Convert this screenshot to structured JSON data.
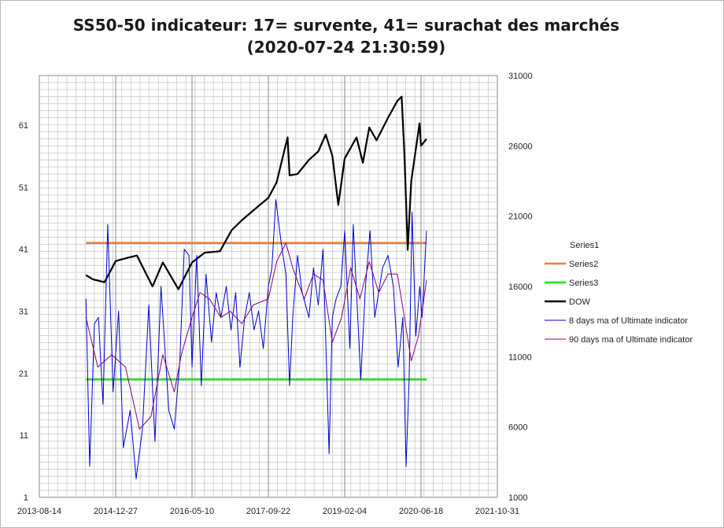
{
  "chart_data": {
    "type": "line",
    "title": "SS50-50 indicateur: 17= survente, 41= surachat des marchés (2020-07-24 21:30:59)",
    "x_axis": {
      "ticks": [
        "2013-08-14",
        "2014-12-27",
        "2016-05-10",
        "2017-09-22",
        "2019-02-04",
        "2020-06-18",
        "2021-10-31"
      ],
      "range": [
        "2013-08-14",
        "2021-10-31"
      ]
    },
    "y_axis_left": {
      "ticks": [
        "1",
        "11",
        "21",
        "31",
        "41",
        "51",
        "61"
      ],
      "range": [
        1,
        69
      ]
    },
    "y_axis_right": {
      "ticks": [
        "1000",
        "6000",
        "11000",
        "16000",
        "21000",
        "26000",
        "31000"
      ],
      "range": [
        1000,
        31000
      ]
    },
    "grid": true,
    "legend_position": "right",
    "series": [
      {
        "name": "Series1",
        "color": "#ffffff",
        "axis": "left",
        "points": []
      },
      {
        "name": "Series2",
        "color": "#ED7D31",
        "axis": "left",
        "points": [
          [
            "2014-06-15",
            42
          ],
          [
            "2020-07-24",
            42
          ]
        ]
      },
      {
        "name": "Series3",
        "color": "#22DD22",
        "axis": "left",
        "points": [
          [
            "2014-06-15",
            20
          ],
          [
            "2020-07-24",
            20
          ]
        ]
      },
      {
        "name": "DOW",
        "color": "#000000",
        "axis": "right",
        "points": [
          [
            "2014-06-15",
            16800
          ],
          [
            "2014-08-01",
            16500
          ],
          [
            "2014-10-15",
            16300
          ],
          [
            "2014-12-27",
            17800
          ],
          [
            "2015-03-01",
            18000
          ],
          [
            "2015-05-15",
            18200
          ],
          [
            "2015-08-25",
            16000
          ],
          [
            "2015-11-01",
            17700
          ],
          [
            "2016-02-11",
            15800
          ],
          [
            "2016-05-10",
            17700
          ],
          [
            "2016-08-01",
            18400
          ],
          [
            "2016-11-09",
            18500
          ],
          [
            "2017-01-25",
            20000
          ],
          [
            "2017-04-01",
            20700
          ],
          [
            "2017-06-15",
            21400
          ],
          [
            "2017-09-22",
            22300
          ],
          [
            "2017-11-15",
            23400
          ],
          [
            "2018-01-26",
            26600
          ],
          [
            "2018-02-08",
            23900
          ],
          [
            "2018-04-01",
            24000
          ],
          [
            "2018-06-15",
            25000
          ],
          [
            "2018-08-15",
            25600
          ],
          [
            "2018-10-03",
            26800
          ],
          [
            "2018-11-15",
            25300
          ],
          [
            "2018-12-24",
            21800
          ],
          [
            "2019-02-04",
            25100
          ],
          [
            "2019-04-23",
            26600
          ],
          [
            "2019-06-03",
            24800
          ],
          [
            "2019-07-15",
            27300
          ],
          [
            "2019-09-01",
            26400
          ],
          [
            "2019-11-15",
            28000
          ],
          [
            "2020-01-15",
            29200
          ],
          [
            "2020-02-12",
            29500
          ],
          [
            "2020-03-01",
            25400
          ],
          [
            "2020-03-23",
            18600
          ],
          [
            "2020-04-15",
            23500
          ],
          [
            "2020-06-08",
            27600
          ],
          [
            "2020-06-18",
            26000
          ],
          [
            "2020-07-24",
            26500
          ]
        ]
      },
      {
        "name": "8 days ma of Ultimate indicator",
        "color": "#0000CC",
        "axis": "left",
        "points": [
          [
            "2014-06-15",
            33
          ],
          [
            "2014-07-10",
            6
          ],
          [
            "2014-08-10",
            29
          ],
          [
            "2014-09-05",
            30
          ],
          [
            "2014-10-05",
            16
          ],
          [
            "2014-11-05",
            45
          ],
          [
            "2014-12-10",
            18
          ],
          [
            "2015-01-15",
            31
          ],
          [
            "2015-02-15",
            9
          ],
          [
            "2015-04-01",
            15
          ],
          [
            "2015-05-10",
            4
          ],
          [
            "2015-06-20",
            12
          ],
          [
            "2015-08-01",
            32
          ],
          [
            "2015-09-10",
            10
          ],
          [
            "2015-10-20",
            35
          ],
          [
            "2015-12-10",
            15
          ],
          [
            "2016-01-15",
            12
          ],
          [
            "2016-02-20",
            23
          ],
          [
            "2016-03-20",
            41
          ],
          [
            "2016-04-20",
            40
          ],
          [
            "2016-05-10",
            22
          ],
          [
            "2016-06-10",
            40
          ],
          [
            "2016-07-10",
            19
          ],
          [
            "2016-08-10",
            37
          ],
          [
            "2016-09-15",
            26
          ],
          [
            "2016-10-15",
            34
          ],
          [
            "2016-11-15",
            30
          ],
          [
            "2016-12-20",
            35
          ],
          [
            "2017-01-20",
            28
          ],
          [
            "2017-02-20",
            34
          ],
          [
            "2017-03-20",
            22
          ],
          [
            "2017-04-20",
            30
          ],
          [
            "2017-05-20",
            34
          ],
          [
            "2017-06-20",
            28
          ],
          [
            "2017-07-20",
            31
          ],
          [
            "2017-08-20",
            25
          ],
          [
            "2017-09-22",
            35
          ],
          [
            "2017-10-15",
            38
          ],
          [
            "2017-11-10",
            49
          ],
          [
            "2017-12-15",
            42
          ],
          [
            "2018-01-15",
            37
          ],
          [
            "2018-02-08",
            19
          ],
          [
            "2018-03-01",
            30
          ],
          [
            "2018-04-01",
            40
          ],
          [
            "2018-05-01",
            34
          ],
          [
            "2018-06-15",
            30
          ],
          [
            "2018-07-15",
            38
          ],
          [
            "2018-08-15",
            32
          ],
          [
            "2018-09-15",
            41
          ],
          [
            "2018-10-25",
            8
          ],
          [
            "2018-11-15",
            30
          ],
          [
            "2018-12-10",
            33
          ],
          [
            "2019-01-10",
            35
          ],
          [
            "2019-02-04",
            44
          ],
          [
            "2019-03-10",
            25
          ],
          [
            "2019-04-01",
            45
          ],
          [
            "2019-05-20",
            20
          ],
          [
            "2019-06-20",
            35
          ],
          [
            "2019-07-20",
            44
          ],
          [
            "2019-08-20",
            30
          ],
          [
            "2019-10-10",
            38
          ],
          [
            "2019-11-15",
            40
          ],
          [
            "2019-12-20",
            35
          ],
          [
            "2020-01-20",
            22
          ],
          [
            "2020-02-20",
            30
          ],
          [
            "2020-03-12",
            6
          ],
          [
            "2020-04-01",
            20
          ],
          [
            "2020-04-20",
            47
          ],
          [
            "2020-05-15",
            27
          ],
          [
            "2020-06-10",
            35
          ],
          [
            "2020-06-25",
            30
          ],
          [
            "2020-07-24",
            44
          ]
        ]
      },
      {
        "name": "90 days ma of Ultimate indicator",
        "color": "#800080",
        "axis": "left",
        "points": [
          [
            "2014-06-15",
            30
          ],
          [
            "2014-09-01",
            22
          ],
          [
            "2014-12-01",
            24
          ],
          [
            "2015-03-01",
            22
          ],
          [
            "2015-06-01",
            12
          ],
          [
            "2015-08-15",
            14
          ],
          [
            "2015-11-01",
            24
          ],
          [
            "2016-01-15",
            18
          ],
          [
            "2016-03-01",
            24
          ],
          [
            "2016-05-10",
            30
          ],
          [
            "2016-07-01",
            34
          ],
          [
            "2016-09-01",
            33
          ],
          [
            "2016-11-15",
            30
          ],
          [
            "2017-01-15",
            31
          ],
          [
            "2017-04-01",
            29
          ],
          [
            "2017-06-15",
            32
          ],
          [
            "2017-09-22",
            33
          ],
          [
            "2017-11-15",
            39
          ],
          [
            "2018-01-15",
            42
          ],
          [
            "2018-03-01",
            38
          ],
          [
            "2018-05-15",
            33
          ],
          [
            "2018-07-15",
            37
          ],
          [
            "2018-09-15",
            36
          ],
          [
            "2018-11-15",
            26
          ],
          [
            "2019-01-15",
            30
          ],
          [
            "2019-03-15",
            38
          ],
          [
            "2019-05-15",
            33
          ],
          [
            "2019-07-15",
            39
          ],
          [
            "2019-09-15",
            34
          ],
          [
            "2019-11-15",
            37
          ],
          [
            "2020-01-15",
            37
          ],
          [
            "2020-03-01",
            30
          ],
          [
            "2020-04-15",
            23
          ],
          [
            "2020-06-01",
            27
          ],
          [
            "2020-07-24",
            36
          ]
        ]
      }
    ]
  }
}
